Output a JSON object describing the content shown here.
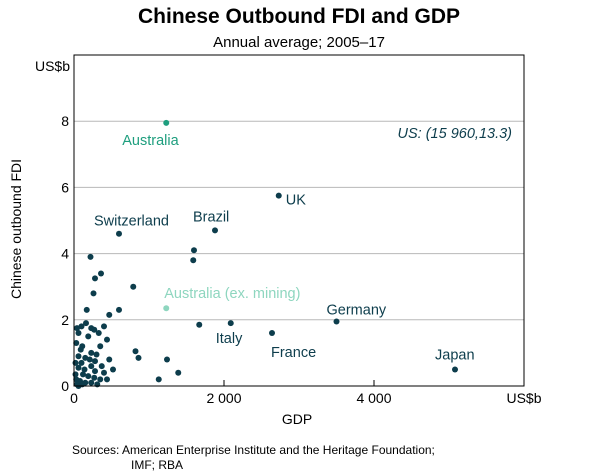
{
  "chart_data": {
    "type": "scatter",
    "title": "Chinese Outbound FDI and GDP",
    "subtitle": "Annual average; 2005–17",
    "xlabel": "GDP",
    "ylabel": "Chinese outbound FDI",
    "x_unit": "US$b",
    "y_unit": "US$b",
    "xlim": [
      0,
      6000
    ],
    "ylim": [
      0,
      10
    ],
    "x_ticks": [
      0,
      2000,
      4000
    ],
    "x_tick_labels": [
      "0",
      "2 000",
      "4 000"
    ],
    "y_ticks": [
      0,
      2,
      4,
      6,
      8
    ],
    "y_tick_labels": [
      "0",
      "2",
      "4",
      "6",
      "8"
    ],
    "grid": "horizontal",
    "colors": {
      "points": "#0d3d4c",
      "australia": "#1e9e7e",
      "australia_ex_mining": "#8ed6bf",
      "grid": "#b8b8b8"
    },
    "annotation": "US: (15 960,13.3)",
    "highlighted": [
      {
        "name": "Australia",
        "x": 1230,
        "y": 7.95,
        "color": "#1e9e7e"
      },
      {
        "name": "Australia (ex. mining)",
        "x": 1230,
        "y": 2.35,
        "color": "#8ed6bf"
      },
      {
        "name": "UK",
        "x": 2730,
        "y": 5.75,
        "color": "#0d3d4c"
      },
      {
        "name": "Switzerland",
        "x": 600,
        "y": 4.6,
        "color": "#0d3d4c"
      },
      {
        "name": "Brazil",
        "x": 1880,
        "y": 4.7,
        "color": "#0d3d4c"
      },
      {
        "name": "Italy",
        "x": 2090,
        "y": 1.9,
        "color": "#0d3d4c"
      },
      {
        "name": "France",
        "x": 2640,
        "y": 1.6,
        "color": "#0d3d4c"
      },
      {
        "name": "Germany",
        "x": 3500,
        "y": 1.95,
        "color": "#0d3d4c"
      },
      {
        "name": "Japan",
        "x": 5080,
        "y": 0.5,
        "color": "#0d3d4c"
      }
    ],
    "points": [
      [
        1600,
        4.1
      ],
      [
        1590,
        3.8
      ],
      [
        790,
        3.0
      ],
      [
        470,
        2.15
      ],
      [
        600,
        2.3
      ],
      [
        220,
        3.9
      ],
      [
        360,
        3.4
      ],
      [
        280,
        3.25
      ],
      [
        260,
        2.8
      ],
      [
        170,
        2.3
      ],
      [
        1670,
        1.85
      ],
      [
        100,
        1.8
      ],
      [
        160,
        1.9
      ],
      [
        230,
        1.75
      ],
      [
        270,
        1.7
      ],
      [
        40,
        1.75
      ],
      [
        400,
        1.8
      ],
      [
        330,
        1.6
      ],
      [
        60,
        1.6
      ],
      [
        190,
        1.5
      ],
      [
        440,
        1.4
      ],
      [
        350,
        1.2
      ],
      [
        30,
        1.3
      ],
      [
        110,
        1.2
      ],
      [
        90,
        1.1
      ],
      [
        230,
        1.0
      ],
      [
        300,
        0.95
      ],
      [
        820,
        1.05
      ],
      [
        860,
        0.85
      ],
      [
        1240,
        0.8
      ],
      [
        470,
        0.8
      ],
      [
        60,
        0.9
      ],
      [
        150,
        0.85
      ],
      [
        210,
        0.8
      ],
      [
        280,
        0.75
      ],
      [
        20,
        0.7
      ],
      [
        100,
        0.7
      ],
      [
        230,
        0.6
      ],
      [
        370,
        0.6
      ],
      [
        520,
        0.5
      ],
      [
        60,
        0.55
      ],
      [
        140,
        0.5
      ],
      [
        280,
        0.45
      ],
      [
        400,
        0.4
      ],
      [
        1390,
        0.4
      ],
      [
        20,
        0.35
      ],
      [
        120,
        0.35
      ],
      [
        190,
        0.3
      ],
      [
        270,
        0.25
      ],
      [
        350,
        0.2
      ],
      [
        440,
        0.2
      ],
      [
        1130,
        0.2
      ],
      [
        30,
        0.2
      ],
      [
        80,
        0.15
      ],
      [
        150,
        0.1
      ],
      [
        230,
        0.1
      ],
      [
        310,
        0.05
      ],
      [
        40,
        0.05
      ],
      [
        110,
        0.05
      ],
      [
        60,
        0.0
      ]
    ]
  },
  "sources": {
    "line1": "Sources:  American Enterprise Institute and the Heritage Foundation;",
    "line2": "IMF; RBA"
  }
}
